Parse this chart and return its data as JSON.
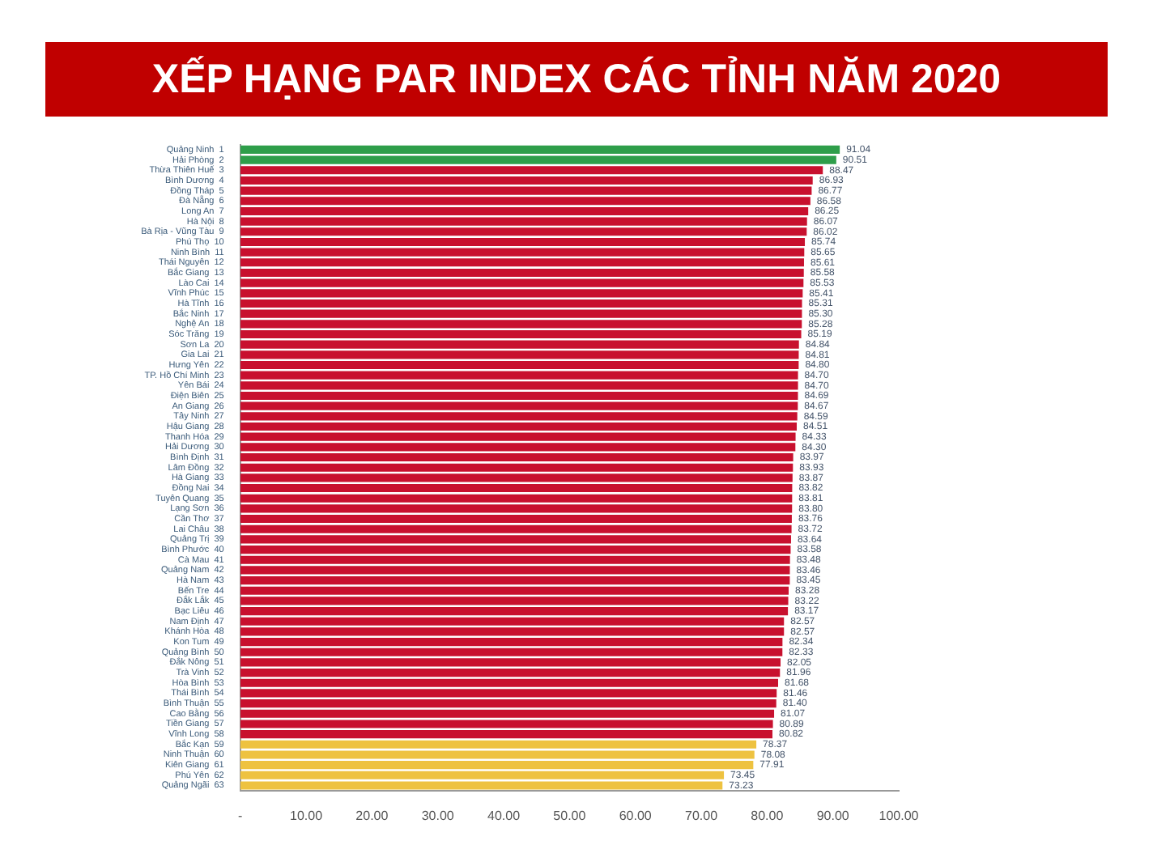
{
  "chart_data": {
    "type": "bar",
    "orientation": "horizontal",
    "title": "XẾP HẠNG PAR INDEX CÁC TỈNH NĂM 2020",
    "categories": [
      "Quảng Ninh  1",
      "Hải Phòng  2",
      "Thừa Thiên Huế  3",
      "Bình Dương  4",
      "Đồng Tháp  5",
      "Đà Nẵng  6",
      "Long An  7",
      "Hà Nội  8",
      "Bà Rịa - Vũng Tàu  9",
      "Phú Thọ  10",
      "Ninh Bình  11",
      "Thái Nguyên  12",
      "Bắc Giang  13",
      "Lào Cai  14",
      "Vĩnh Phúc  15",
      "Hà Tĩnh  16",
      "Bắc Ninh  17",
      "Nghệ An  18",
      "Sóc Trăng  19",
      "Sơn La  20",
      "Gia Lai  21",
      "Hưng Yên  22",
      "TP. Hồ Chí Minh  23",
      "Yên Bái  24",
      "Điện Biên  25",
      "An Giang  26",
      "Tây Ninh  27",
      "Hậu Giang  28",
      "Thanh Hóa  29",
      "Hải Dương  30",
      "Bình Định  31",
      "Lâm Đồng  32",
      "Hà Giang  33",
      "Đồng Nai  34",
      "Tuyên Quang  35",
      "Lạng Sơn  36",
      "Cần Thơ  37",
      "Lai Châu  38",
      "Quảng Trị  39",
      "Bình Phước  40",
      "Cà Mau  41",
      "Quảng Nam  42",
      "Hà Nam  43",
      "Bến Tre  44",
      "Đắk Lắk  45",
      "Bạc Liêu  46",
      "Nam Định  47",
      "Khánh Hòa  48",
      "Kon Tum  49",
      "Quảng Bình  50",
      "Đắk Nông  51",
      "Trà Vinh  52",
      "Hòa Bình  53",
      "Thái Bình  54",
      "Bình Thuận  55",
      "Cao Bằng  56",
      "Tiền Giang  57",
      "Vĩnh Long  58",
      "Bắc Kạn  59",
      "Ninh Thuận  60",
      "Kiên Giang  61",
      "Phú Yên  62",
      "Quảng Ngãi  63"
    ],
    "values": [
      91.04,
      90.51,
      88.47,
      86.93,
      86.77,
      86.58,
      86.25,
      86.07,
      86.02,
      85.74,
      85.65,
      85.61,
      85.58,
      85.53,
      85.41,
      85.31,
      85.3,
      85.28,
      85.19,
      84.84,
      84.81,
      84.8,
      84.7,
      84.7,
      84.69,
      84.67,
      84.59,
      84.51,
      84.33,
      84.3,
      83.97,
      83.93,
      83.87,
      83.82,
      83.81,
      83.8,
      83.76,
      83.72,
      83.64,
      83.58,
      83.48,
      83.46,
      83.45,
      83.28,
      83.22,
      83.17,
      82.57,
      82.57,
      82.34,
      82.33,
      82.05,
      81.96,
      81.68,
      81.46,
      81.4,
      81.07,
      80.89,
      80.82,
      78.37,
      78.08,
      77.91,
      73.45,
      73.23
    ],
    "value_labels": [
      "91.04",
      "90.51",
      "88.47",
      "86.93",
      "86.77",
      "86.58",
      "86.25",
      "86.07",
      "86.02",
      "85.74",
      "85.65",
      "85.61",
      "85.58",
      "85.53",
      "85.41",
      "85.31",
      "85.30",
      "85.28",
      "85.19",
      "84.84",
      "84.81",
      "84.80",
      "84.70",
      "84.70",
      "84.69",
      "84.67",
      "84.59",
      "84.51",
      "84.33",
      "84.30",
      "83.97",
      "83.93",
      "83.87",
      "83.82",
      "83.81",
      "83.80",
      "83.76",
      "83.72",
      "83.64",
      "83.58",
      "83.48",
      "83.46",
      "83.45",
      "83.28",
      "83.22",
      "83.17",
      "82.57",
      "82.57",
      "82.34",
      "82.33",
      "82.05",
      "81.96",
      "81.68",
      "81.46",
      "81.40",
      "81.07",
      "80.89",
      "80.82",
      "78.37",
      "78.08",
      "77.91",
      "73.45",
      "73.23"
    ],
    "colors": [
      "#2e9e4a",
      "#2e9e4a",
      "#c8102e",
      "#c8102e",
      "#c8102e",
      "#c8102e",
      "#c8102e",
      "#c8102e",
      "#c8102e",
      "#c8102e",
      "#c8102e",
      "#c8102e",
      "#c8102e",
      "#c8102e",
      "#c8102e",
      "#c8102e",
      "#c8102e",
      "#c8102e",
      "#c8102e",
      "#c8102e",
      "#c8102e",
      "#c8102e",
      "#c8102e",
      "#c8102e",
      "#c8102e",
      "#c8102e",
      "#c8102e",
      "#c8102e",
      "#c8102e",
      "#c8102e",
      "#c8102e",
      "#c8102e",
      "#c8102e",
      "#c8102e",
      "#c8102e",
      "#c8102e",
      "#c8102e",
      "#c8102e",
      "#c8102e",
      "#c8102e",
      "#c8102e",
      "#c8102e",
      "#c8102e",
      "#c8102e",
      "#c8102e",
      "#c8102e",
      "#c8102e",
      "#c8102e",
      "#c8102e",
      "#c8102e",
      "#c8102e",
      "#c8102e",
      "#c8102e",
      "#c8102e",
      "#c8102e",
      "#c8102e",
      "#c8102e",
      "#c8102e",
      "#eec240",
      "#eec240",
      "#eec240",
      "#eec240",
      "#eec240"
    ],
    "xlim": [
      0,
      100
    ],
    "xticks": [
      {
        "value": 0,
        "label": "-"
      },
      {
        "value": 10,
        "label": "10.00"
      },
      {
        "value": 20,
        "label": "20.00"
      },
      {
        "value": 30,
        "label": "30.00"
      },
      {
        "value": 40,
        "label": "40.00"
      },
      {
        "value": 50,
        "label": "50.00"
      },
      {
        "value": 60,
        "label": "60.00"
      },
      {
        "value": 70,
        "label": "70.00"
      },
      {
        "value": 80,
        "label": "80.00"
      },
      {
        "value": 90,
        "label": "90.00"
      },
      {
        "value": 100,
        "label": "100.00"
      }
    ],
    "grid": false,
    "legend": false
  }
}
